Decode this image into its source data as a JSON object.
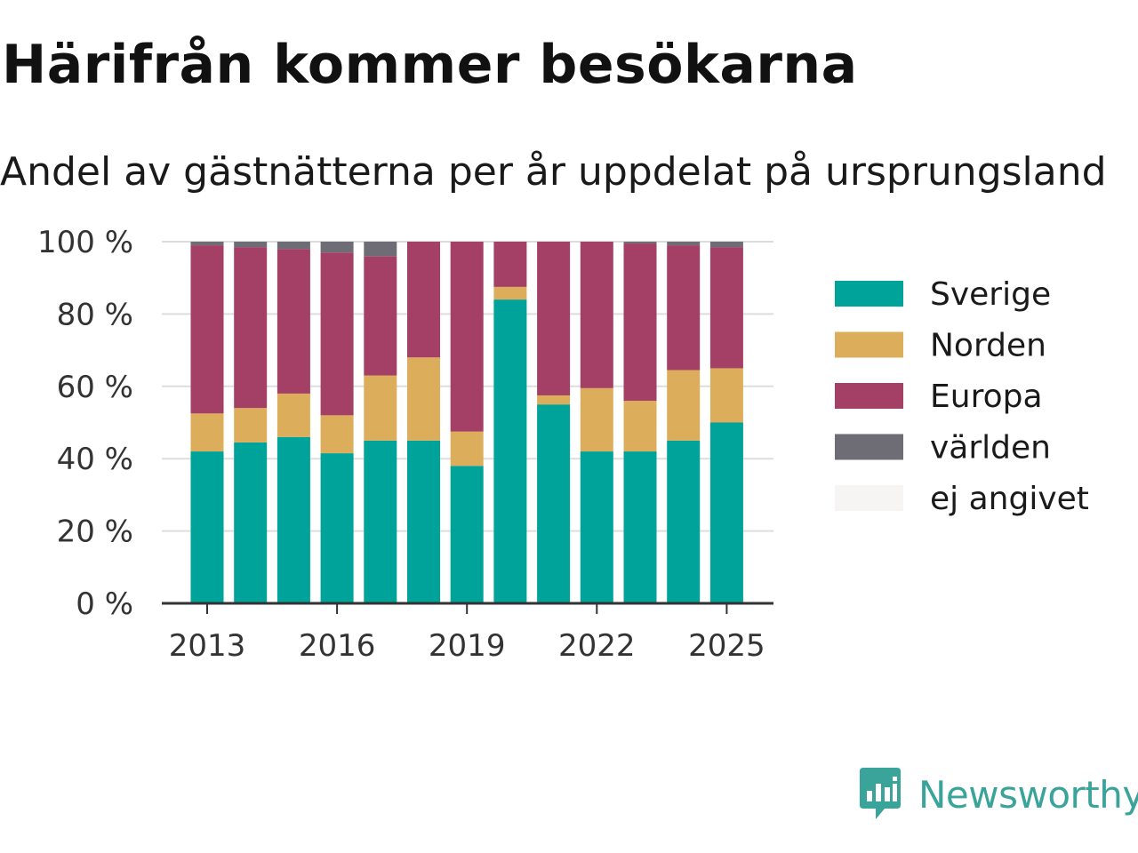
{
  "header": {
    "title": "Härifrån kommer besökarna",
    "subtitle": "Andel av gästnätterna per år uppdelat på ursprungsland"
  },
  "brand": {
    "name": "Newsworthy",
    "icon": "newsworthy-logo-icon",
    "color": "#3aa39a"
  },
  "chart_data": {
    "type": "bar",
    "stacked": true,
    "title": "",
    "xlabel": "",
    "ylabel": "",
    "categories": [
      "2013",
      "2014",
      "2015",
      "2016",
      "2017",
      "2018",
      "2019",
      "2020",
      "2021",
      "2022",
      "2023",
      "2024",
      "2025"
    ],
    "x_tick_labels": [
      "2013",
      "2016",
      "2019",
      "2022",
      "2025"
    ],
    "y_ticks": [
      0,
      20,
      40,
      60,
      80,
      100
    ],
    "y_tick_labels": [
      "0 %",
      "20 %",
      "40 %",
      "60 %",
      "80 %",
      "100 %"
    ],
    "ylim": [
      0,
      100
    ],
    "grid": true,
    "legend_position": "right",
    "series": [
      {
        "name": "Sverige",
        "color": "#00a39a",
        "values": [
          42,
          44.5,
          46,
          41.5,
          45,
          45,
          38,
          84,
          55,
          42,
          42,
          45,
          50
        ]
      },
      {
        "name": "Norden",
        "color": "#dcae5b",
        "values": [
          10.5,
          9.5,
          12,
          10.5,
          18,
          23,
          9.5,
          3.5,
          2.5,
          17.5,
          14,
          19.5,
          15
        ]
      },
      {
        "name": "Europa",
        "color": "#a44066",
        "values": [
          46.5,
          44.5,
          40,
          45,
          33,
          32,
          52.5,
          12.5,
          42.5,
          40.5,
          43.5,
          34.5,
          33.5
        ]
      },
      {
        "name": "världen",
        "color": "#6e6d75",
        "values": [
          1,
          1.5,
          2,
          3,
          4,
          0,
          0,
          0,
          0,
          0,
          0.5,
          1,
          1.5
        ]
      },
      {
        "name": "ej angivet",
        "color": "#f6f5f3",
        "values": [
          0,
          0,
          0,
          0,
          0,
          0,
          0,
          0,
          0,
          0,
          0,
          0,
          0
        ]
      }
    ]
  }
}
